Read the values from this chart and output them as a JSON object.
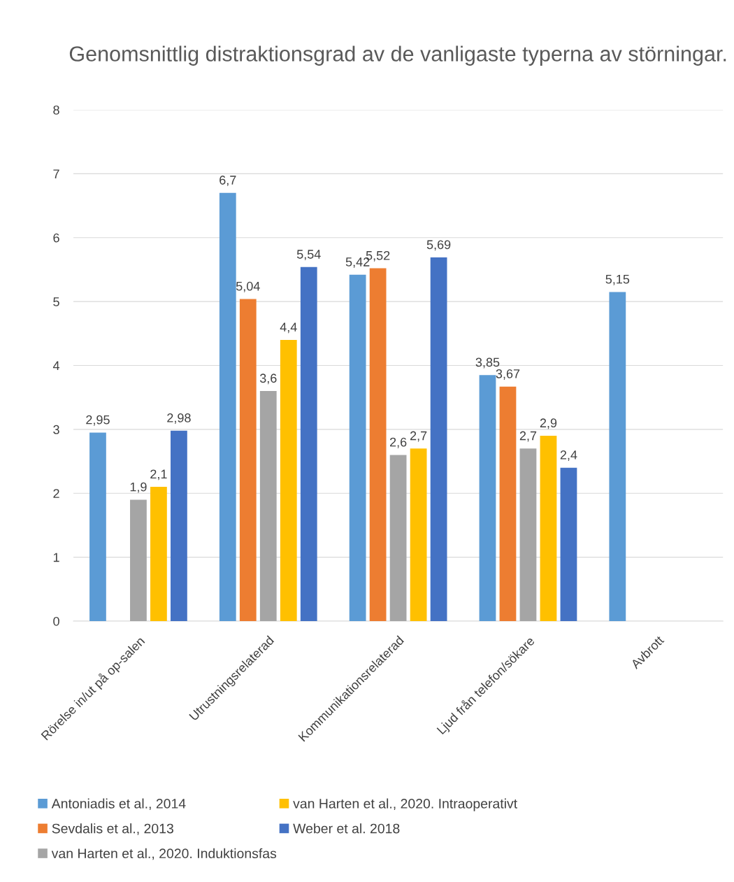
{
  "chart_data": {
    "type": "bar",
    "title": "Genomsnittlig distraktionsgrad av de vanligaste typerna av störningar.",
    "categories": [
      "Rörelse in/ut på op-salen",
      "Utrustningsrelaterad",
      "Kommunikationsrelaterad",
      "Ljud från telefon/sökare",
      "Avbrott"
    ],
    "series": [
      {
        "name": "Antoniadis et al., 2014",
        "color": "#5b9bd5",
        "values": [
          2.95,
          6.7,
          5.42,
          3.85,
          5.15
        ],
        "value_labels": [
          "2,95",
          "6,7",
          "5,42",
          "3,85",
          "5,15"
        ]
      },
      {
        "name": "Sevdalis et al., 2013",
        "color": "#ed7d31",
        "values": [
          null,
          5.04,
          5.52,
          3.67,
          null
        ],
        "value_labels": [
          null,
          "5,04",
          "5,52",
          "3,67",
          null
        ]
      },
      {
        "name": "van Harten et al., 2020. Induktionsfas",
        "color": "#a5a5a5",
        "values": [
          1.9,
          3.6,
          2.6,
          2.7,
          null
        ],
        "value_labels": [
          "1,9",
          "3,6",
          "2,6",
          "2,7",
          null
        ]
      },
      {
        "name": "van Harten et al., 2020. Intraoperativt",
        "color": "#ffc000",
        "values": [
          2.1,
          4.4,
          2.7,
          2.9,
          null
        ],
        "value_labels": [
          "2,1",
          "4,4",
          "2,7",
          "2,9",
          null
        ]
      },
      {
        "name": "Weber et al. 2018",
        "color": "#4472c4",
        "values": [
          2.98,
          5.54,
          5.69,
          2.4,
          null
        ],
        "value_labels": [
          "2,98",
          "5,54",
          "5,69",
          "2,4",
          null
        ]
      }
    ],
    "ylim": [
      0,
      8
    ],
    "yticks": [
      0,
      1,
      2,
      3,
      4,
      5,
      6,
      7,
      8
    ],
    "grid": "y",
    "legend": "bottom"
  }
}
